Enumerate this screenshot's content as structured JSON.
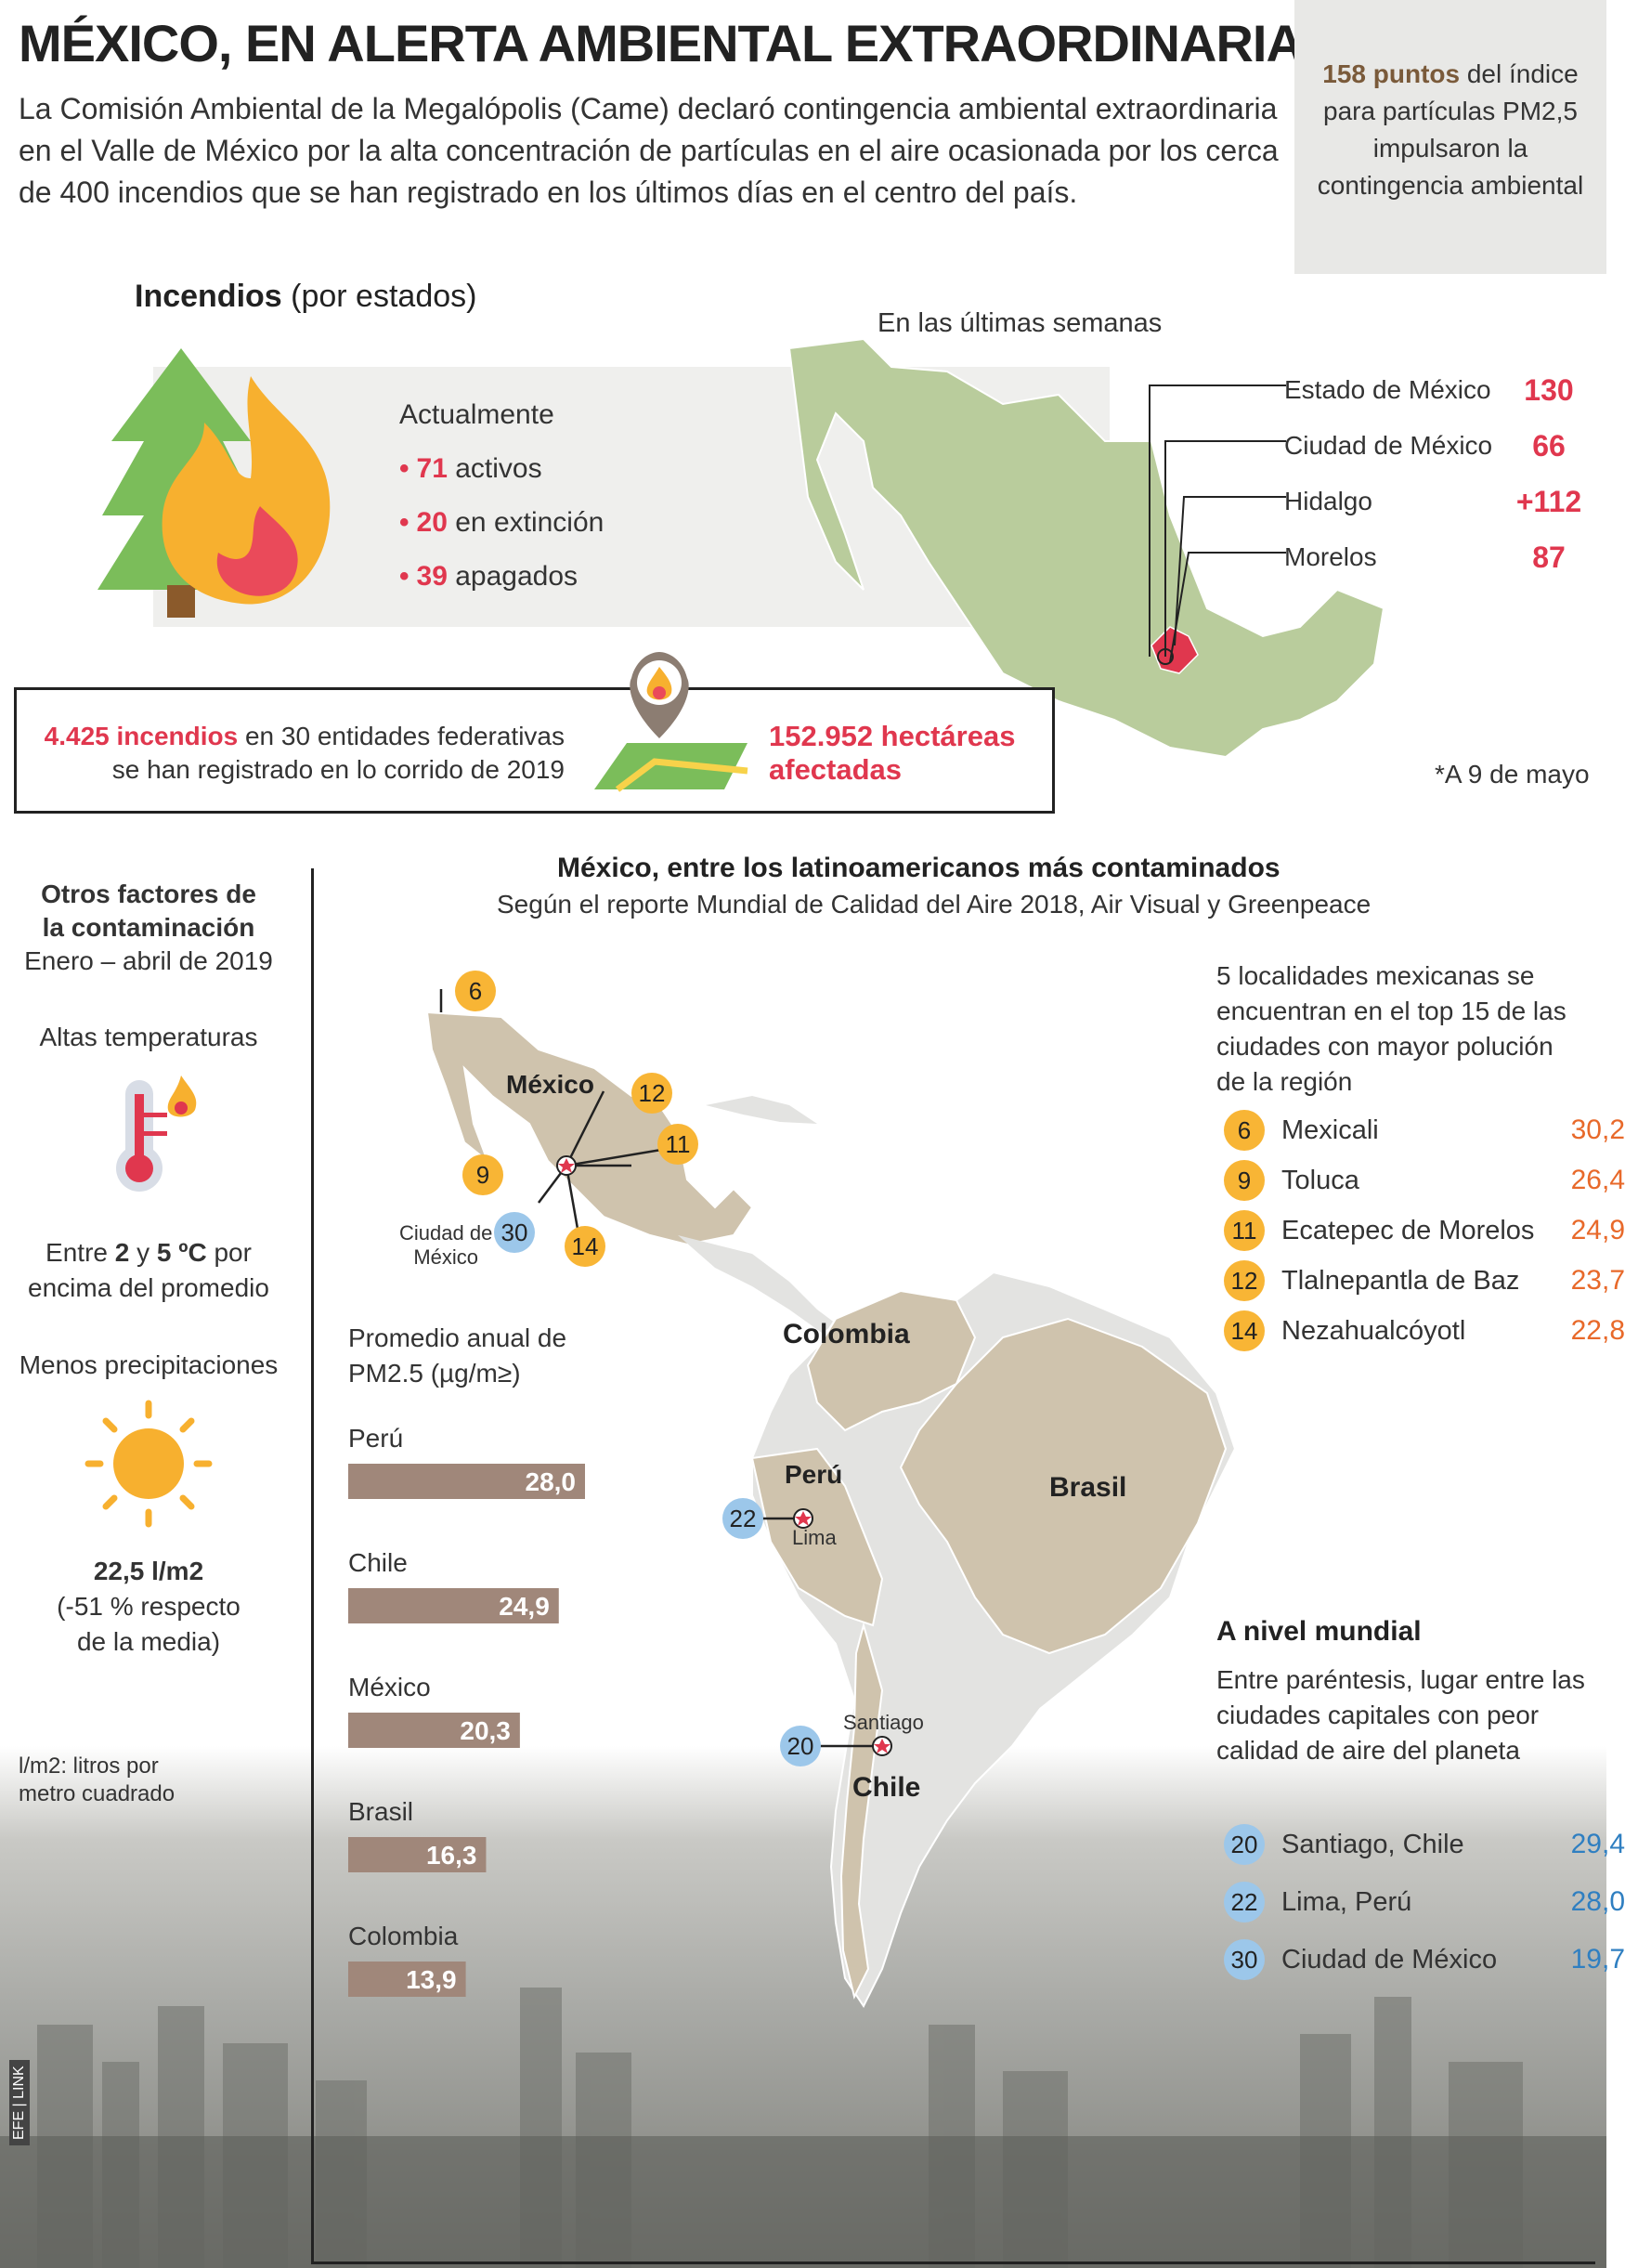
{
  "header": {
    "title": "MÉXICO, EN ALERTA AMBIENTAL EXTRAORDINARIA",
    "intro": "La Comisión Ambiental de la Megalópolis (Came) declaró contingencia ambiental extraordinaria en el Valle de México por la alta concentración de partículas en el aire ocasionada por los cerca de 400 incendios que se han registrado en los últimos días en el centro del país."
  },
  "sidebox": {
    "highlight": "158 puntos",
    "text": "del índice para partículas PM2,5 impulsaron la contingencia ambiental"
  },
  "incendios": {
    "title_bold": "Incendios",
    "title_rest": " (por estados)",
    "status_label": "Actualmente",
    "status": [
      {
        "value": "71",
        "label": "activos"
      },
      {
        "value": "20",
        "label": "en extinción"
      },
      {
        "value": "39",
        "label": "apagados"
      }
    ],
    "map_label": "En las últimas semanas",
    "states": [
      {
        "name": "Estado de México",
        "value": "130"
      },
      {
        "name": "Ciudad de México",
        "value": "66"
      },
      {
        "name": "Hidalgo",
        "value": "+112"
      },
      {
        "name": "Morelos",
        "value": "87"
      }
    ],
    "box_left_bold": "4.425 incendios",
    "box_left_rest": " en 30 entidades federativas",
    "box_left_line2": "se han registrado en lo corrido de 2019",
    "box_right_line1": "152.952 hectáreas",
    "box_right_line2": "afectadas",
    "date_note": "*A 9 de mayo"
  },
  "factores": {
    "title_line1": "Otros factores de",
    "title_line2": "la contaminación",
    "period": "Enero – abril de 2019",
    "temp_title": "Altas temperaturas",
    "temp_pre": "Entre ",
    "temp_a": "2",
    "temp_mid": " y ",
    "temp_b": "5 ºC",
    "temp_post": " por",
    "temp_line2": "encima del promedio",
    "precip_title": "Menos precipitaciones",
    "precip_value": "22,5 l/m2",
    "precip_line2": "(-51 % respecto",
    "precip_line3": "de la media)",
    "note_line1": "l/m2: litros por",
    "note_line2": "metro cuadrado"
  },
  "panel": {
    "title": "México, entre los latinoamericanos más contaminados",
    "subtitle": "Según el reporte Mundial de Calidad del Aire 2018, Air Visual y Greenpeace"
  },
  "map_labels": {
    "mexico": "México",
    "colombia": "Colombia",
    "peru": "Perú",
    "brasil": "Brasil",
    "chile": "Chile",
    "lima": "Lima",
    "santiago": "Santiago",
    "cdmx_line1": "Ciudad de",
    "cdmx_line2": "México",
    "b6": "6",
    "b9": "9",
    "b11": "11",
    "b12": "12",
    "b14": "14",
    "b30": "30",
    "b22": "22",
    "b20": "20"
  },
  "chart_data": {
    "type": "bar",
    "title": "Promedio anual de PM2.5 (µg/m≥)",
    "categories": [
      "Perú",
      "Chile",
      "México",
      "Brasil",
      "Colombia"
    ],
    "values": [
      28.0,
      24.9,
      20.3,
      16.3,
      13.9
    ],
    "value_labels": [
      "28,0",
      "24,9",
      "20,3",
      "16,3",
      "13,9"
    ],
    "bar_color": "#a0877a"
  },
  "rank_mx": {
    "intro": "5 localidades mexicanas se encuentran en el top 15 de las ciudades con mayor polución de la región",
    "items": [
      {
        "rank": "6",
        "city": "Mexicali",
        "value": "30,2"
      },
      {
        "rank": "9",
        "city": "Toluca",
        "value": "26,4"
      },
      {
        "rank": "11",
        "city": "Ecatepec de Morelos",
        "value": "24,9"
      },
      {
        "rank": "12",
        "city": "Tlalnepantla de Baz",
        "value": "23,7"
      },
      {
        "rank": "14",
        "city": "Nezahualcóyotl",
        "value": "22,8"
      }
    ]
  },
  "world": {
    "title": "A nivel mundial",
    "intro": "Entre paréntesis, lugar entre las ciudades capitales con peor calidad de aire del planeta",
    "items": [
      {
        "rank": "20",
        "city": "Santiago, Chile",
        "value": "29,4"
      },
      {
        "rank": "22",
        "city": "Lima, Perú",
        "value": "28,0"
      },
      {
        "rank": "30",
        "city": "Ciudad de México",
        "value": "19,7"
      }
    ]
  },
  "credit": "EFE | LINK",
  "colors": {
    "accent_red": "#e0374e",
    "orange": "#e8692a",
    "blue": "#2f7fc1",
    "map_green": "#b9cc9c",
    "map_tan": "#cfc3ad"
  }
}
